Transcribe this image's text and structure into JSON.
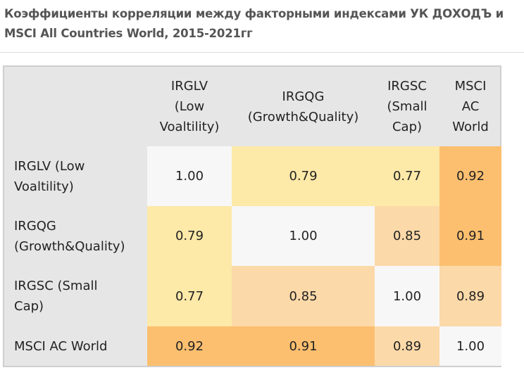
{
  "title": "Коэффициенты корреляции между факторными индексами  УК ДОХОДЪ и MSCI All Countries World, 2015-2021гг",
  "chart_data": {
    "type": "heatmap",
    "title": "Коэффициенты корреляции между факторными индексами  УК ДОХОДЪ и MSCI All Countries World, 2015-2021гг",
    "columns": [
      "IRGLV (Low Voaltility)",
      "IRGQG (Growth&Quality)",
      "IRGSC (Small Cap)",
      "MSCI AC World"
    ],
    "rows": [
      "IRGLV (Low Voaltility)",
      "IRGQG (Growth&Quality)",
      "IRGSC (Small Cap)",
      "MSCI AC World"
    ],
    "values": [
      [
        "1.00",
        "0.79",
        "0.77",
        "0.92"
      ],
      [
        "0.79",
        "1.00",
        "0.85",
        "0.91"
      ],
      [
        "0.77",
        "0.85",
        "1.00",
        "0.89"
      ],
      [
        "0.92",
        "0.91",
        "0.89",
        "1.00"
      ]
    ],
    "colors": {
      "low": "#fde9a8",
      "mid": "#fcd9a8",
      "high": "#fcbf6f",
      "diag": "#f7f7f7"
    }
  }
}
